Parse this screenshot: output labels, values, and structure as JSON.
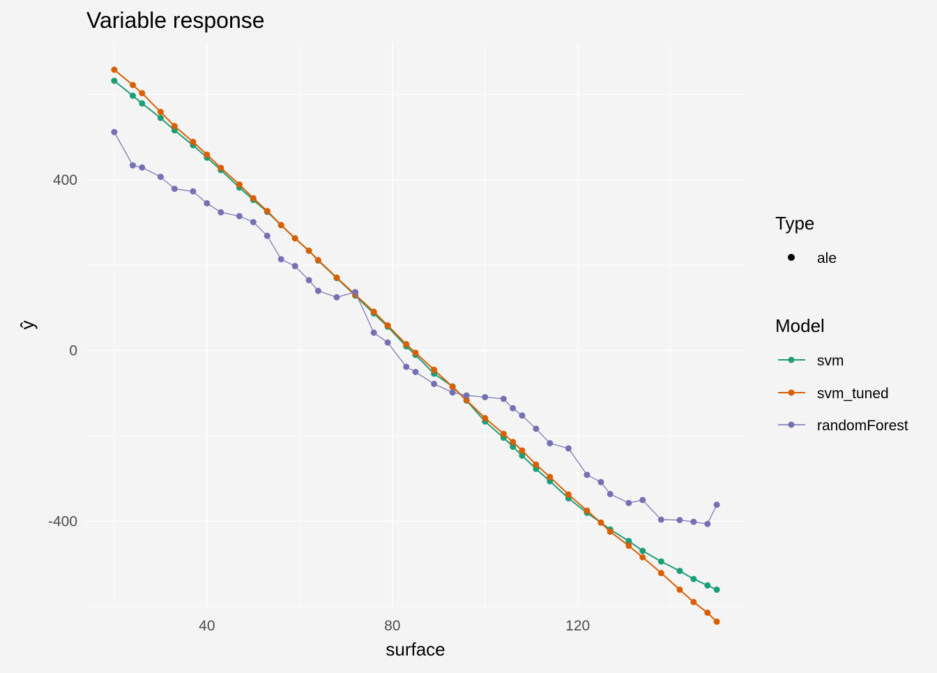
{
  "chart_data": {
    "type": "line",
    "title": "Variable response",
    "xlabel": "surface",
    "ylabel": "ŷ",
    "xlim": [
      14,
      156
    ],
    "ylim": [
      -600,
      720
    ],
    "x_ticks": [
      40,
      80,
      120
    ],
    "y_ticks": [
      400,
      0,
      -400
    ],
    "x_tick_labels": [
      "40",
      "80",
      "120"
    ],
    "y_tick_labels": [
      "400",
      "0",
      "-400"
    ],
    "grid": true,
    "legend_position": "right",
    "legend": {
      "type_title": "Type",
      "type_entries": [
        {
          "label": "ale",
          "color": "#000000"
        }
      ],
      "model_title": "Model"
    },
    "series": [
      {
        "name": "svm",
        "color": "#1b9e77",
        "x": [
          20,
          24,
          26,
          30,
          33,
          37,
          40,
          43,
          47,
          50,
          53,
          56,
          59,
          62,
          64,
          68,
          72,
          76,
          79,
          83,
          85,
          89,
          93,
          96,
          100,
          104,
          106,
          108,
          111,
          114,
          118,
          122,
          125,
          127,
          131,
          134,
          138,
          142,
          145,
          148,
          150
        ],
        "y": [
          632,
          597,
          579,
          545,
          516,
          481,
          452,
          423,
          382,
          353,
          325,
          294,
          263,
          234,
          211,
          170,
          129,
          87,
          56,
          10,
          -10,
          -54,
          -84,
          -117,
          -166,
          -204,
          -225,
          -246,
          -277,
          -306,
          -346,
          -380,
          -403,
          -419,
          -446,
          -469,
          -494,
          -516,
          -535,
          -550,
          -560
        ]
      },
      {
        "name": "svm_tuned",
        "color": "#d95f02",
        "x": [
          20,
          24,
          26,
          30,
          33,
          37,
          40,
          43,
          47,
          50,
          53,
          56,
          59,
          62,
          64,
          68,
          72,
          76,
          79,
          83,
          85,
          89,
          93,
          96,
          100,
          104,
          106,
          108,
          111,
          114,
          118,
          122,
          125,
          127,
          131,
          134,
          138,
          142,
          145,
          148,
          150
        ],
        "y": [
          658,
          622,
          603,
          559,
          526,
          489,
          459,
          428,
          389,
          357,
          327,
          294,
          263,
          234,
          212,
          171,
          131,
          91,
          59,
          15,
          -5,
          -45,
          -85,
          -116,
          -158,
          -195,
          -214,
          -234,
          -267,
          -296,
          -337,
          -375,
          -403,
          -424,
          -457,
          -484,
          -521,
          -560,
          -589,
          -614,
          -635
        ]
      },
      {
        "name": "randomForest",
        "color": "#7570b3",
        "x": [
          20,
          24,
          26,
          30,
          33,
          37,
          40,
          43,
          47,
          50,
          53,
          56,
          59,
          62,
          64,
          68,
          72,
          76,
          79,
          83,
          85,
          89,
          93,
          96,
          100,
          104,
          106,
          108,
          111,
          114,
          118,
          122,
          125,
          127,
          131,
          134,
          138,
          142,
          145,
          148,
          150
        ],
        "y": [
          512,
          434,
          429,
          407,
          379,
          373,
          345,
          324,
          315,
          301,
          269,
          214,
          198,
          165,
          140,
          125,
          137,
          42,
          19,
          -38,
          -50,
          -78,
          -98,
          -105,
          -109,
          -113,
          -135,
          -152,
          -183,
          -217,
          -229,
          -291,
          -308,
          -336,
          -357,
          -350,
          -396,
          -397,
          -401,
          -406,
          -361
        ]
      }
    ]
  }
}
